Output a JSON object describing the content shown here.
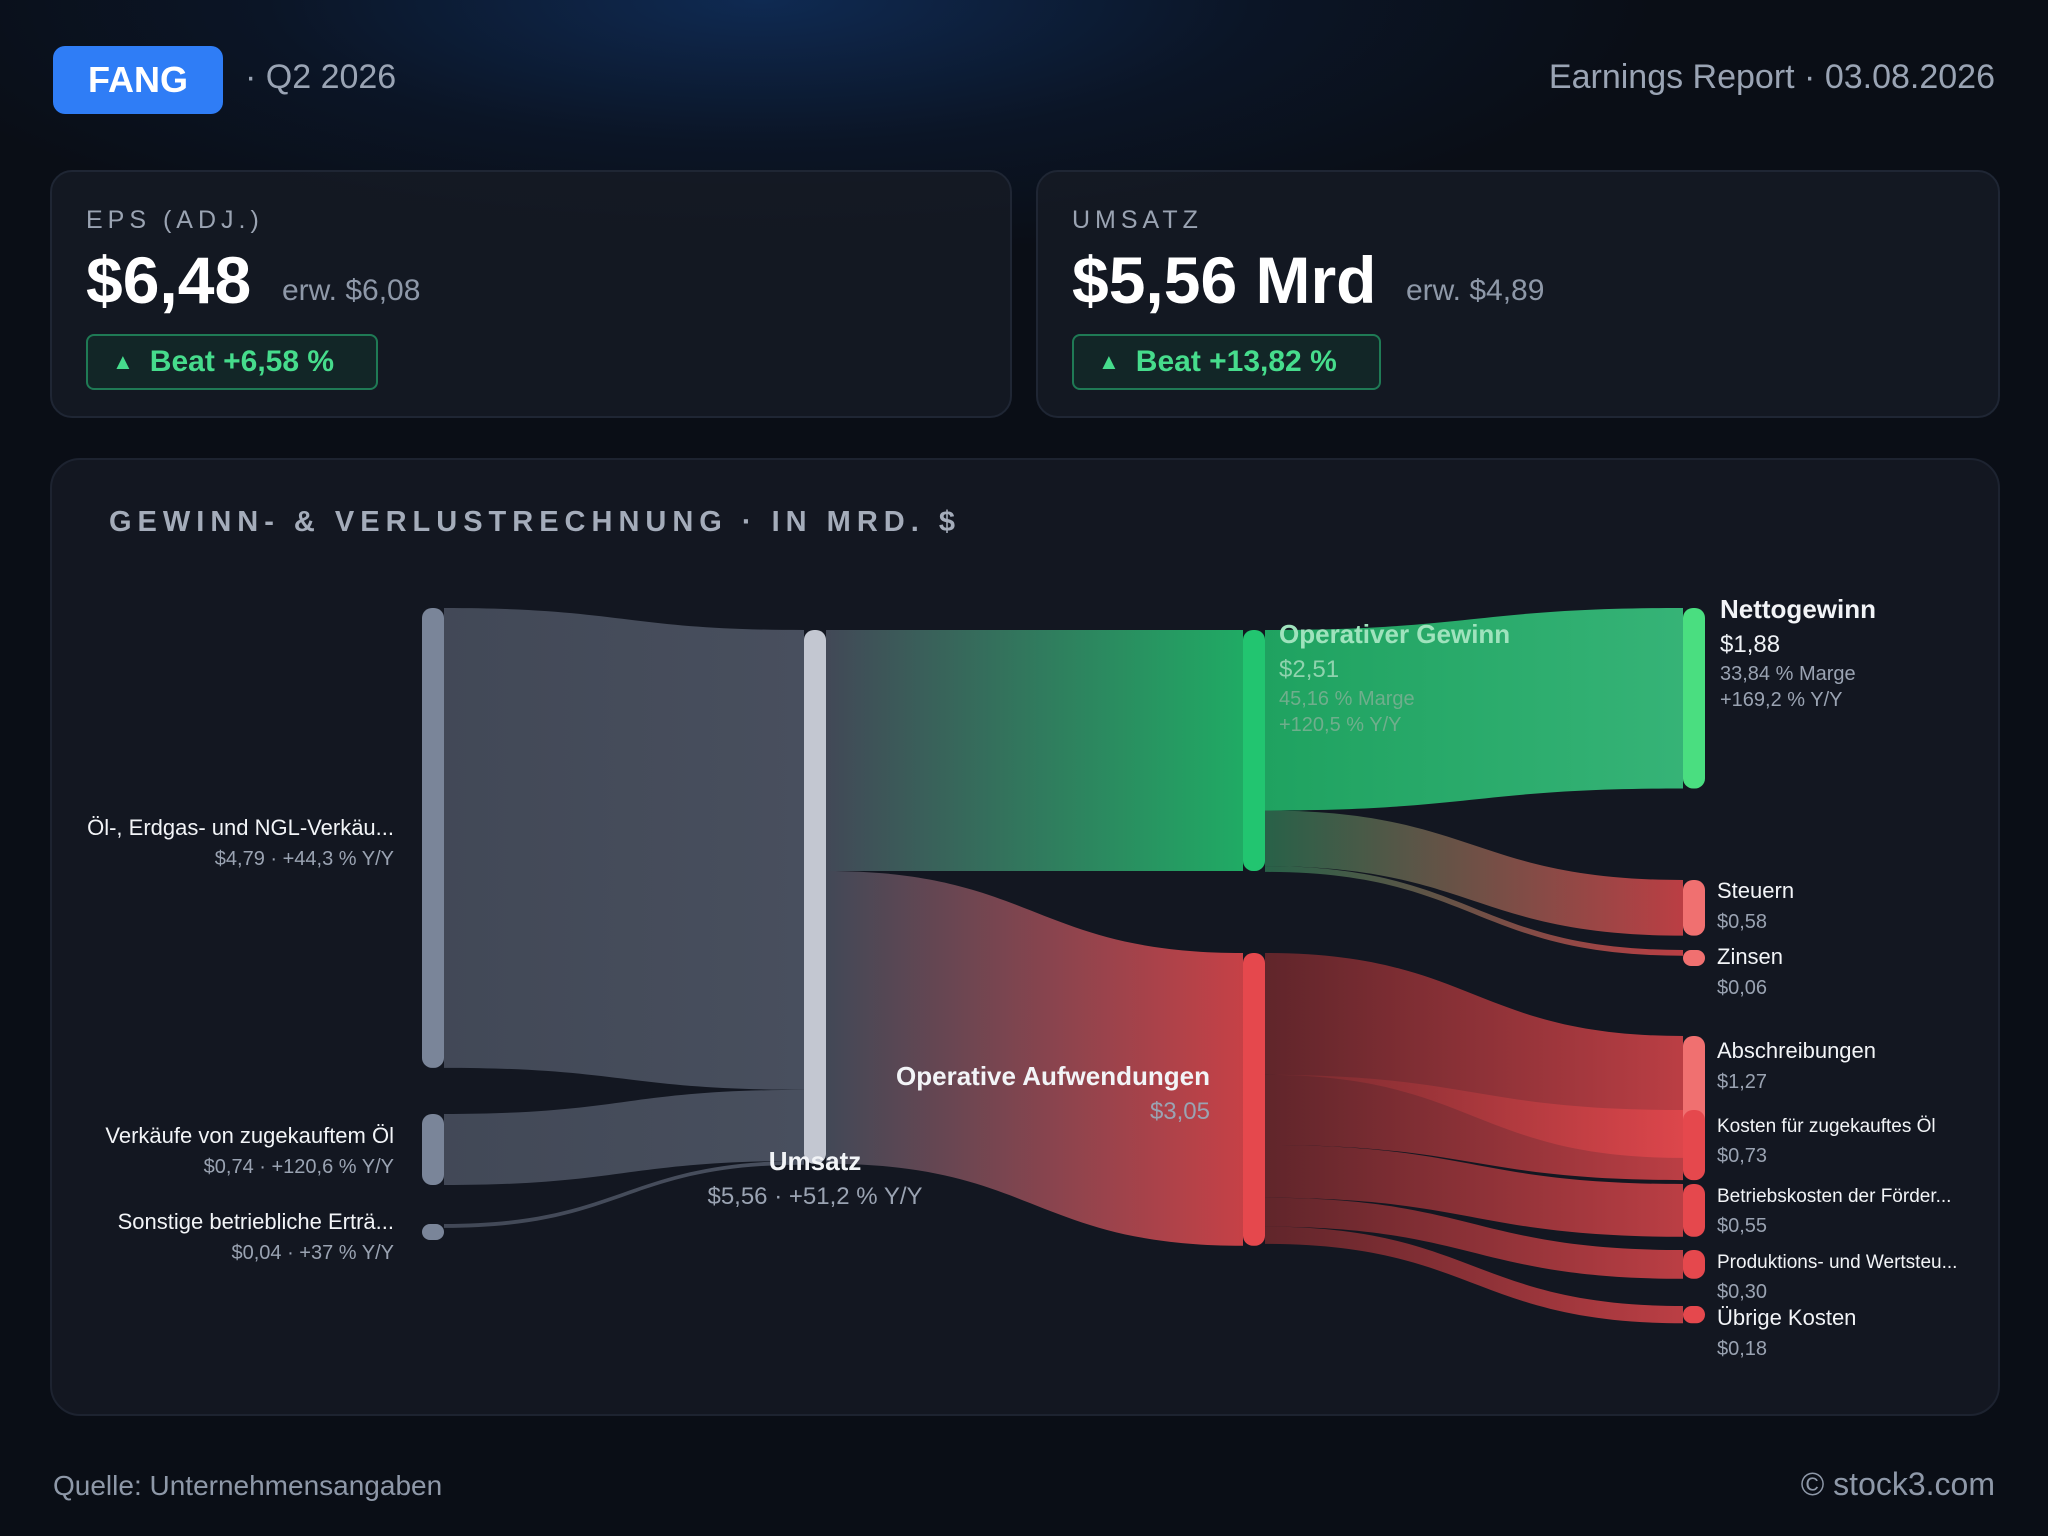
{
  "header": {
    "ticker": "FANG",
    "quarter": "· Q2 2026",
    "report": "Earnings Report · 03.08.2026"
  },
  "cards": {
    "eps": {
      "label": "EPS (ADJ.)",
      "value": "$6,48",
      "estimate": "erw. $6,08",
      "beat": "Beat +6,58 %"
    },
    "revenue": {
      "label": "UMSATZ",
      "value": "$5,56 Mrd",
      "estimate": "erw. $4,89",
      "beat": "Beat +13,82 %"
    }
  },
  "colors": {
    "accent": "#2f7df6",
    "positive": "#22c570",
    "negative": "#e5484d",
    "revenue_node": "#c3c7d1",
    "source_node": "#7a8599"
  },
  "footer": {
    "source": "Quelle: Unternehmensangaben",
    "copyright": "© stock3.com"
  },
  "chart_data": {
    "type": "sankey",
    "title": "GEWINN- & VERLUSTRECHNUNG · IN MRD. $",
    "nodes": [
      {
        "id": "oil",
        "label": "Öl-, Erdgas- und NGL-Verkäu...",
        "sub": "$4,79 · +44,3 % Y/Y",
        "value": 4.79,
        "group": "source"
      },
      {
        "id": "purchased",
        "label": "Verkäufe von zugekauftem Öl",
        "sub": "$0,74 · +120,6 % Y/Y",
        "value": 0.74,
        "group": "source"
      },
      {
        "id": "other_income",
        "label": "Sonstige betriebliche Erträ...",
        "sub": "$0,04 · +37 % Y/Y",
        "value": 0.04,
        "group": "source"
      },
      {
        "id": "revenue",
        "label": "Umsatz",
        "sub": "$5,56 · +51,2 % Y/Y",
        "value": 5.56,
        "group": "revenue"
      },
      {
        "id": "op_profit",
        "label": "Operativer Gewinn",
        "sub": "$2,51",
        "sub2": "45,16 % Marge",
        "sub3": "+120,5 % Y/Y",
        "value": 2.51,
        "group": "profit"
      },
      {
        "id": "op_expenses",
        "label": "Operative Aufwendungen",
        "sub": "$3,05",
        "value": 3.05,
        "group": "cost"
      },
      {
        "id": "net_income",
        "label": "Nettogewinn",
        "sub": "$1,88",
        "sub2": "33,84 % Marge",
        "sub3": "+169,2 % Y/Y",
        "value": 1.88,
        "group": "profit"
      },
      {
        "id": "taxes",
        "label": "Steuern",
        "sub": "$0,58",
        "value": 0.58,
        "group": "cost"
      },
      {
        "id": "interest",
        "label": "Zinsen",
        "sub": "$0,06",
        "value": 0.06,
        "group": "cost"
      },
      {
        "id": "depreciation",
        "label": "Abschreibungen",
        "sub": "$1,27",
        "value": 1.27,
        "group": "cost"
      },
      {
        "id": "purchased_cost",
        "label": "Kosten für zugekauftes Öl",
        "sub": "$0,73",
        "value": 0.73,
        "group": "cost"
      },
      {
        "id": "lease_opex",
        "label": "Betriebskosten der Förder...",
        "sub": "$0,55",
        "value": 0.55,
        "group": "cost"
      },
      {
        "id": "production_tax",
        "label": "Produktions- und Wertsteu...",
        "sub": "$0,30",
        "value": 0.3,
        "group": "cost"
      },
      {
        "id": "other_costs",
        "label": "Übrige Kosten",
        "sub": "$0,18",
        "value": 0.18,
        "group": "cost"
      }
    ],
    "links": [
      {
        "source": "oil",
        "target": "revenue",
        "value": 4.79
      },
      {
        "source": "purchased",
        "target": "revenue",
        "value": 0.74
      },
      {
        "source": "other_income",
        "target": "revenue",
        "value": 0.04
      },
      {
        "source": "revenue",
        "target": "op_profit",
        "value": 2.51
      },
      {
        "source": "revenue",
        "target": "op_expenses",
        "value": 3.05
      },
      {
        "source": "op_profit",
        "target": "net_income",
        "value": 1.88
      },
      {
        "source": "op_profit",
        "target": "taxes",
        "value": 0.58
      },
      {
        "source": "op_profit",
        "target": "interest",
        "value": 0.06
      },
      {
        "source": "op_expenses",
        "target": "depreciation",
        "value": 1.27
      },
      {
        "source": "op_expenses",
        "target": "purchased_cost",
        "value": 0.73
      },
      {
        "source": "op_expenses",
        "target": "lease_opex",
        "value": 0.55
      },
      {
        "source": "op_expenses",
        "target": "production_tax",
        "value": 0.3
      },
      {
        "source": "op_expenses",
        "target": "other_costs",
        "value": 0.18
      }
    ]
  }
}
